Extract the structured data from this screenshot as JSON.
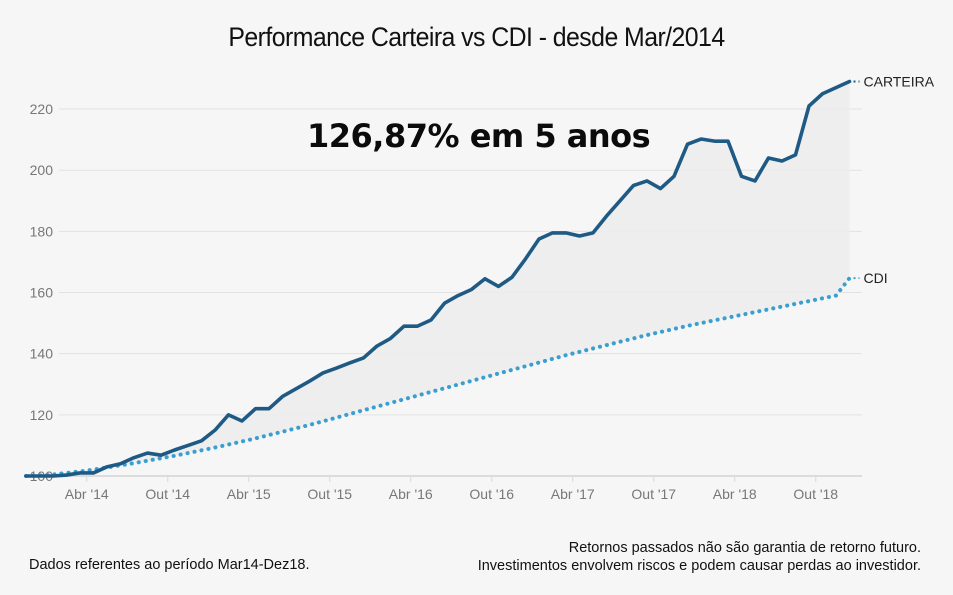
{
  "chart_data": {
    "type": "line",
    "title": "Performance Carteira vs CDI - desde Mar/2014",
    "annotation": "126,87% em 5 anos",
    "xlabel": "",
    "ylabel": "",
    "ylim": [
      100,
      229
    ],
    "y_ticks": [
      100,
      120,
      140,
      160,
      180,
      200,
      220
    ],
    "x_tick_labels": [
      "Abr '14",
      "Out '14",
      "Abr '15",
      "Out '15",
      "Abr '16",
      "Out '16",
      "Abr '17",
      "Out '17",
      "Abr '18",
      "Out '18"
    ],
    "x_tick_month_index": [
      4.5,
      10.5,
      16.5,
      22.5,
      28.5,
      34.5,
      40.5,
      46.5,
      52.5,
      58.5
    ],
    "grid": true,
    "legend": "inline-right-end-labels",
    "fill_between_series": true,
    "series": [
      {
        "name": "CARTEIRA",
        "color": "#1f5a85",
        "style": "solid",
        "values": [
          100,
          100,
          100,
          100.3,
          101,
          101,
          103,
          104,
          106,
          107.5,
          106.8,
          108.5,
          110,
          111.5,
          115,
          120,
          118,
          122,
          122,
          126,
          128.5,
          131,
          133.7,
          135.3,
          137,
          138.6,
          142.5,
          145,
          149,
          149,
          151,
          156.5,
          159,
          161,
          164.5,
          162,
          165,
          171,
          177.5,
          179.5,
          179.5,
          178.5,
          179.5,
          185,
          190,
          195,
          196.5,
          194,
          198,
          208.5,
          210.2,
          209.5,
          209.5,
          198,
          196.5,
          204,
          203,
          205,
          221,
          225,
          227,
          229
        ]
      },
      {
        "name": "CDI",
        "color": "#3a9fd0",
        "style": "dotted",
        "values": [
          100,
          100.2,
          100.5,
          101,
          101.5,
          102.1,
          102.8,
          103.5,
          104.2,
          105,
          105.8,
          106.6,
          107.5,
          108.4,
          109.3,
          110.3,
          111.3,
          112.3,
          113.4,
          114.5,
          115.6,
          116.7,
          117.9,
          119.1,
          120.3,
          121.5,
          122.7,
          123.9,
          125.1,
          126.3,
          127.5,
          128.7,
          129.9,
          131.1,
          132.3,
          133.5,
          134.7,
          135.9,
          137.1,
          138.3,
          139.5,
          140.6,
          141.7,
          142.8,
          143.9,
          145,
          146.1,
          147.1,
          148.1,
          149.1,
          150,
          150.9,
          151.8,
          152.7,
          153.6,
          154.5,
          155.4,
          156.3,
          157.2,
          158.1,
          159,
          164.7
        ]
      }
    ]
  },
  "footer": {
    "left": "Dados referentes ao período Mar14-Dez18.",
    "right_line1": "Retornos passados não são garantia de retorno futuro.",
    "right_line2": "Investimentos envolvem riscos e podem causar perdas ao investidor."
  }
}
